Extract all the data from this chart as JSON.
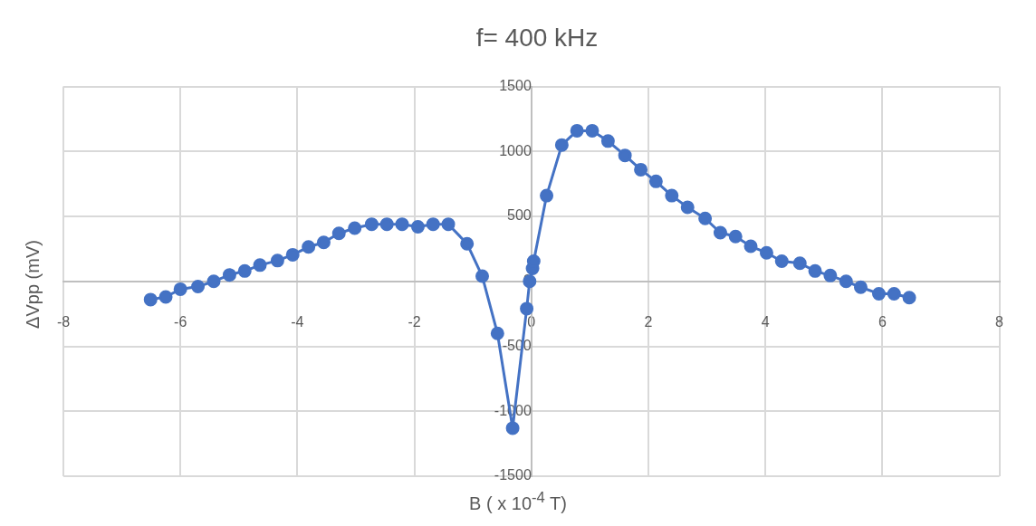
{
  "chart_data": {
    "type": "line",
    "title": "f= 400 kHz",
    "xlabel": "B ( x 10$^{-4}$ T)",
    "ylabel": "ΔVpp (mV)",
    "xlim": [
      -8,
      8
    ],
    "xticks": [
      -8,
      -6,
      -4,
      -2,
      0,
      2,
      4,
      6,
      8
    ],
    "ylim": [
      -1500,
      1500
    ],
    "yticks": [
      -1500,
      -1000,
      -500,
      0,
      500,
      1000,
      1500
    ],
    "grid": true,
    "legend": false,
    "marker": "circle",
    "line_style": "solid",
    "series": [
      {
        "color": "#4472c4",
        "x": [
          -6.51,
          -6.25,
          -6.0,
          -5.7,
          -5.43,
          -5.16,
          -4.9,
          -4.64,
          -4.34,
          -4.08,
          -3.81,
          -3.55,
          -3.29,
          -3.02,
          -2.73,
          -2.47,
          -2.21,
          -1.94,
          -1.68,
          -1.42,
          -1.1,
          -0.84,
          -0.58,
          -0.32,
          -0.08,
          -0.03,
          -0.01,
          0.0,
          0.02,
          0.04,
          0.26,
          0.52,
          0.78,
          1.04,
          1.31,
          1.6,
          1.87,
          2.13,
          2.4,
          2.67,
          2.97,
          3.23,
          3.49,
          3.75,
          4.02,
          4.28,
          4.59,
          4.85,
          5.11,
          5.38,
          5.63,
          5.94,
          6.2,
          6.46
        ],
        "values": [
          -140,
          -120,
          -60,
          -40,
          0,
          50,
          80,
          125,
          160,
          205,
          265,
          300,
          370,
          410,
          440,
          440,
          440,
          420,
          440,
          440,
          290,
          40,
          -400,
          -1130,
          -210,
          0,
          null,
          null,
          100,
          155,
          660,
          1050,
          1160,
          1160,
          1080,
          970,
          860,
          770,
          660,
          570,
          485,
          375,
          345,
          270,
          220,
          155,
          140,
          80,
          45,
          0,
          -45,
          -95,
          -95,
          -125
        ]
      }
    ]
  }
}
